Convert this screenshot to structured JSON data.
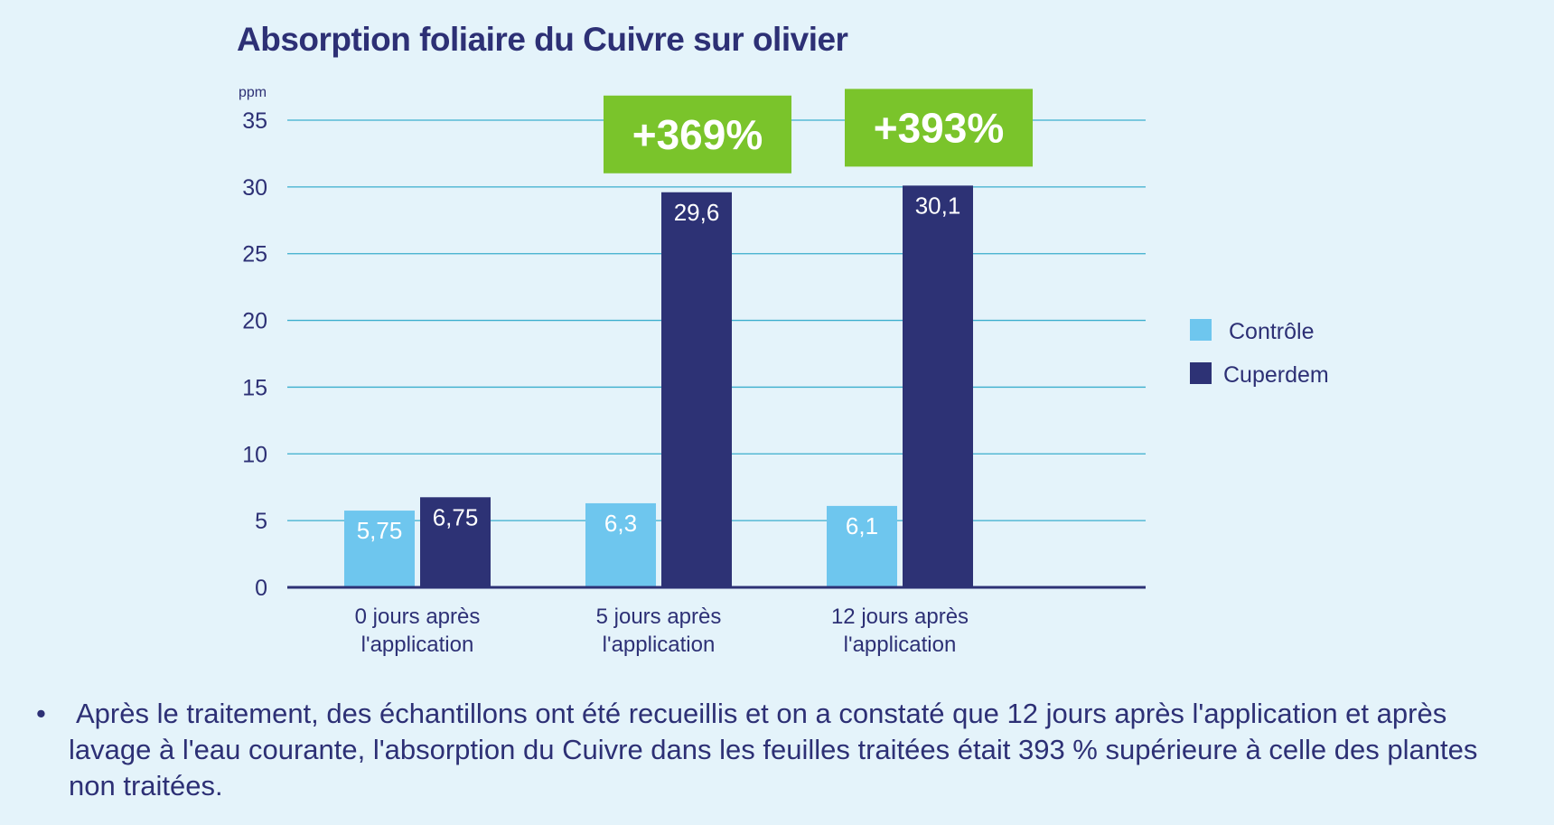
{
  "chart_data": {
    "type": "bar",
    "title": "Absorption foliaire du Cuivre sur olivier",
    "ylabel": "ppm",
    "ylim": [
      0,
      35
    ],
    "yticks": [
      "0",
      "5",
      "10",
      "15",
      "20",
      "25",
      "30",
      "35"
    ],
    "grid": true,
    "legend_position": "right",
    "categories": [
      [
        "0 jours après",
        "l'application"
      ],
      [
        "5 jours après",
        "l'application"
      ],
      [
        "12 jours après",
        "l'application"
      ]
    ],
    "series": [
      {
        "name": "Contrôle",
        "color": "#6ec6ee",
        "values": [
          5.75,
          6.3,
          6.1
        ],
        "labels": [
          "5,75",
          "6,3",
          "6,1"
        ]
      },
      {
        "name": "Cuperdem",
        "color": "#2d3275",
        "values": [
          6.75,
          29.6,
          30.1
        ],
        "labels": [
          "6,75",
          "29,6",
          "30,1"
        ]
      }
    ],
    "annotations": [
      {
        "text": "+369%",
        "category_index": 1,
        "color": "#7ac42b"
      },
      {
        "text": "+393%",
        "category_index": 2,
        "color": "#7ac42b"
      }
    ]
  },
  "colors": {
    "text": "#2d3075",
    "grid": "#3aaecd",
    "axis": "#2d3275",
    "background": "#e4f3fa"
  },
  "note": {
    "bullet": "•",
    "text": "Après le traitement, des échantillons ont été recueillis et on a constaté que 12 jours après l'application et après lavage à l'eau courante, l'absorption du Cuivre dans les feuilles traitées était 393 % supérieure à celle des plantes non traitées."
  }
}
